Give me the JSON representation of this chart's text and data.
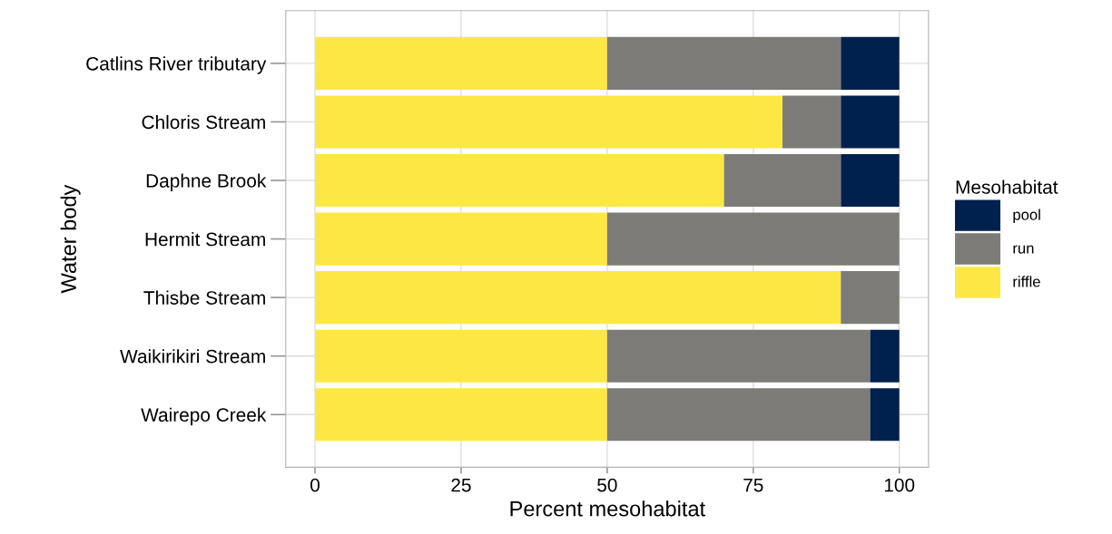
{
  "chart_data": {
    "type": "bar",
    "orientation": "horizontal",
    "stacked": true,
    "xlabel": "Percent mesohabitat",
    "ylabel": "Water body",
    "legend_title": "Mesohabitat",
    "legend": "right",
    "grid": true,
    "categories": [
      "Catlins River tributary",
      "Chloris Stream",
      "Daphne Brook",
      "Hermit Stream",
      "Thisbe Stream",
      "Waikirikiri Stream",
      "Wairepo Creek"
    ],
    "series": [
      {
        "name": "riffle",
        "color": "#fde745",
        "values": [
          50,
          80,
          70,
          50,
          90,
          50,
          50
        ]
      },
      {
        "name": "run",
        "color": "#7c7b78",
        "values": [
          40,
          10,
          20,
          50,
          10,
          45,
          45
        ]
      },
      {
        "name": "pool",
        "color": "#00204d",
        "values": [
          10,
          10,
          10,
          0,
          0,
          5,
          5
        ]
      }
    ],
    "xlim": [
      -5,
      105
    ],
    "xticks": [
      0,
      25,
      50,
      75,
      100
    ]
  }
}
